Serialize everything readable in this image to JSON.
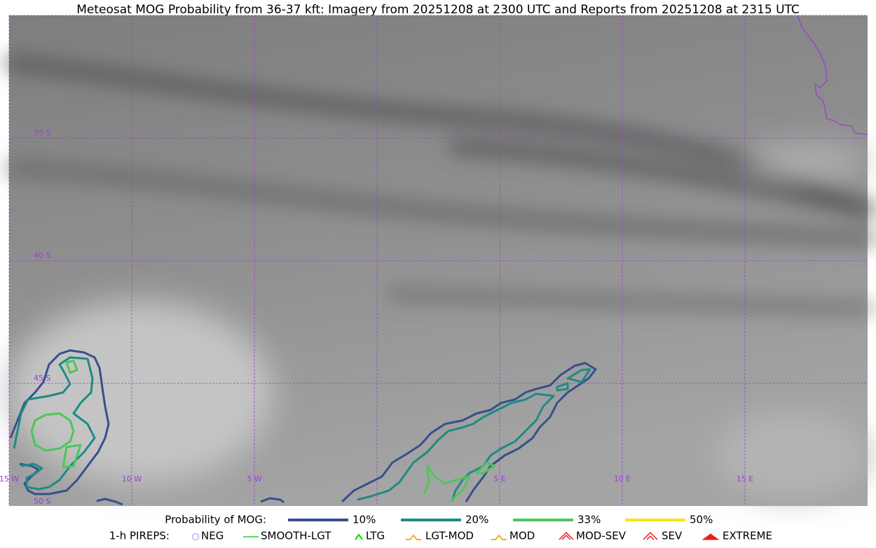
{
  "title": "Meteosat MOG Probability from 36-37 kft: Imagery from 20251208 at 2300 UTC and Reports from 20251208 at 2315 UTC",
  "map": {
    "lat_labels": [
      "35 S",
      "40 S",
      "45 S",
      "50 S"
    ],
    "lon_labels": [
      "15 W",
      "10 W",
      "5 W",
      "5 E",
      "10 E",
      "15 E"
    ]
  },
  "legend": {
    "probability": {
      "label": "Probability of MOG:",
      "items": [
        {
          "label": "10%",
          "color": "#36508e"
        },
        {
          "label": "20%",
          "color": "#1f8a84"
        },
        {
          "label": "33%",
          "color": "#4ec65a"
        },
        {
          "label": "50%",
          "color": "#f5e61c"
        }
      ]
    },
    "pireps": {
      "label": "1-h PIREPS:",
      "items": [
        {
          "label": "NEG",
          "color": "#b8b8f0"
        },
        {
          "label": "SMOOTH-LGT",
          "color": "#33cc33"
        },
        {
          "label": "LTG",
          "color": "#00dd00"
        },
        {
          "label": "LGT-MOD",
          "color": "#f0b020"
        },
        {
          "label": "MOD",
          "color": "#f0b020"
        },
        {
          "label": "MOD-SEV",
          "color": "#e82020"
        },
        {
          "label": "SEV",
          "color": "#e82020"
        },
        {
          "label": "EXTREME",
          "color": "#e82020"
        }
      ]
    }
  }
}
